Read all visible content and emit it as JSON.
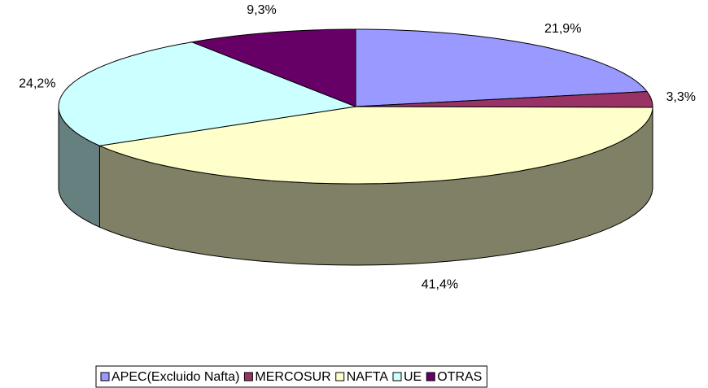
{
  "chart_data": {
    "type": "pie3d",
    "categories": [
      "APEC(Excluido Nafta)",
      "MERCOSUR",
      "NAFTA",
      "UE",
      "OTRAS"
    ],
    "values": [
      21.9,
      3.3,
      41.4,
      24.2,
      9.3
    ],
    "value_labels": [
      "21,9%",
      "3,3%",
      "41,4%",
      "24,2%",
      "9,3%"
    ],
    "colors": [
      "#9999ff",
      "#993366",
      "#ffffcc",
      "#ccffff",
      "#660066"
    ],
    "legend": "bottom"
  }
}
